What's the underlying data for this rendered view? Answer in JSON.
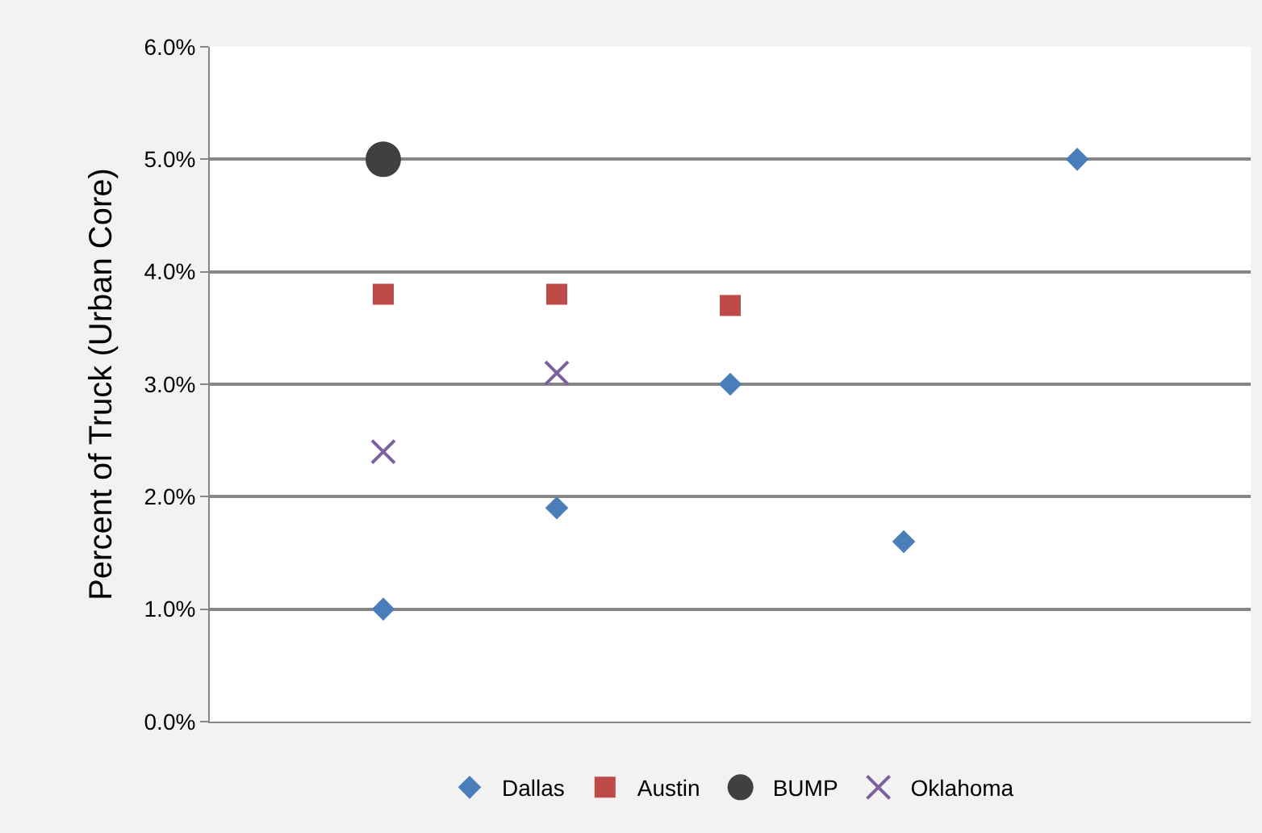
{
  "chart_data": {
    "type": "scatter",
    "ylabel": "Percent of Truck (Urban Core)",
    "categories": [
      null,
      null,
      null,
      null,
      null
    ],
    "series": [
      {
        "name": "Dallas",
        "color": "#4a7ebb",
        "marker": "diamond",
        "values": [
          1.0,
          1.9,
          3.0,
          1.6,
          5.0
        ]
      },
      {
        "name": "Austin",
        "color": "#be4b48",
        "marker": "square",
        "values": [
          3.8,
          3.8,
          3.7,
          null,
          null
        ]
      },
      {
        "name": "BUMP",
        "color": "#404040",
        "marker": "circle",
        "values": [
          5.0,
          null,
          null,
          null,
          null
        ]
      },
      {
        "name": "Oklahoma",
        "color": "#7d60a0",
        "marker": "cross",
        "values": [
          2.4,
          3.1,
          null,
          null,
          null
        ]
      }
    ],
    "ylim": [
      0,
      6
    ],
    "yticks": [
      {
        "value": 0,
        "label": "0.0%"
      },
      {
        "value": 1,
        "label": "1.0%"
      },
      {
        "value": 2,
        "label": "2.0%"
      },
      {
        "value": 3,
        "label": "3.0%"
      },
      {
        "value": 4,
        "label": "4.0%"
      },
      {
        "value": 5,
        "label": "5.0%"
      },
      {
        "value": 6,
        "label": "6.0%"
      }
    ],
    "grid": "y",
    "legend": "bottom"
  }
}
